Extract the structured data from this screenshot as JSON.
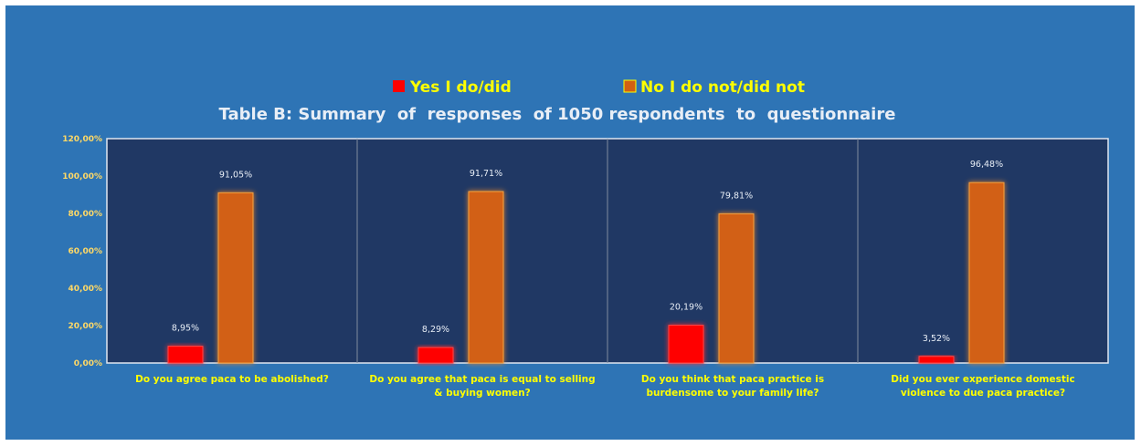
{
  "chart_data": {
    "type": "bar",
    "title": "Table B: Summary  of  responses  of 1050 respondents  to  questionnaire",
    "categories": [
      [
        "Do you agree paca to be abolished?"
      ],
      [
        "Do you agree that paca is equal to selling",
        "& buying women?"
      ],
      [
        "Do you think that paca practice is",
        "burdensome to your family life?"
      ],
      [
        "Did you ever experience domestic",
        "violence to due paca practice?"
      ]
    ],
    "series": [
      {
        "name": "Yes I do/did",
        "color": "#ff0000",
        "values": [
          8.95,
          8.29,
          20.19,
          3.52
        ],
        "labels": [
          "8,95%",
          "8,29%",
          "20,19%",
          "3,52%"
        ]
      },
      {
        "name": "No I do not/did not",
        "color": "#d26012",
        "values": [
          91.05,
          91.71,
          79.81,
          96.48
        ],
        "labels": [
          "91,05%",
          "91,71%",
          "79,81%",
          "96,48%"
        ]
      }
    ],
    "ylim": [
      0,
      120
    ],
    "yticks": [
      0,
      20,
      40,
      60,
      80,
      100,
      120
    ],
    "ytick_labels": [
      "0,00%",
      "20,00%",
      "40,00%",
      "60,00%",
      "80,00%",
      "100,00%",
      "120,00%"
    ],
    "legend_position": "top",
    "colors": {
      "background": "#2e74b5",
      "plot_area": "#203864",
      "legend_text": "#ffff00",
      "title_text": "#e8eef6",
      "category_text": "#ffff00",
      "tick_text": "#ffd966"
    }
  }
}
